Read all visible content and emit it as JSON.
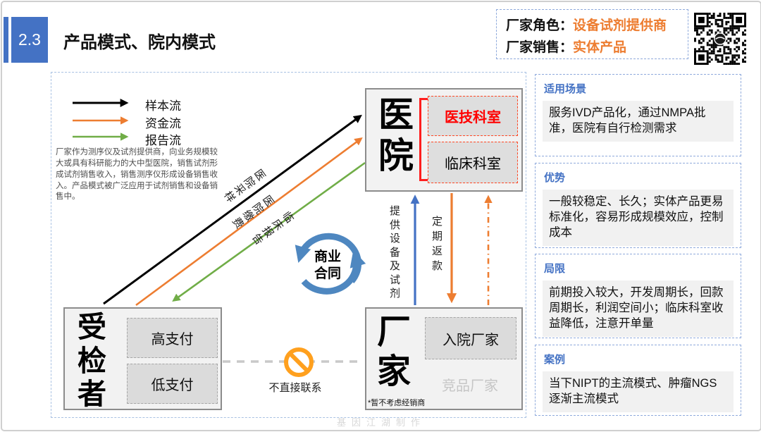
{
  "header": {
    "badge": "2.3",
    "title": "产品模式、院内模式",
    "role_label": "厂家角色：",
    "role_value": "设备试剂提供商",
    "sales_label": "厂家销售：",
    "sales_value": "实体产品"
  },
  "legend": {
    "items": [
      {
        "label": "样本流",
        "color": "#000000"
      },
      {
        "label": "资金流",
        "color": "#ED7D31"
      },
      {
        "label": "报告流",
        "color": "#70AD47"
      }
    ]
  },
  "description": "厂家作为测序仪及试剂提供商，向业务规模较大或具有科研能力的大中型医院，销售试剂形成试剂销售收入，销售测序仪形成设备销售收入。产品模式被广泛应用于试剂销售和设备销售中。",
  "diagram": {
    "hospital": {
      "name": "医院",
      "dept_tech": "医技科室",
      "dept_clinical": "临床科室"
    },
    "patient": {
      "name": "受检者",
      "high": "高支付",
      "low": "低支付"
    },
    "manufacturer": {
      "name": "厂家",
      "in_hospital": "入院厂家",
      "competitor": "竞品厂家",
      "footnote": "*暂不考虑经销商"
    },
    "labels": {
      "sampling": "医院采样",
      "fee": "医院缴费",
      "clinical_report": "临床报告",
      "provide": "提供设备及试剂",
      "refund": "定期返款",
      "contract": "商业合同",
      "no_contact": "不直接联系"
    }
  },
  "sidebar": {
    "sections": [
      {
        "heading": "适用场景",
        "text": "服务IVD产品化，通过NMPA批准，医院有自行检测需求"
      },
      {
        "heading": "优势",
        "text": "一般较稳定、长久；实体产品更易标准化，容易形成规模效应，控制成本"
      },
      {
        "heading": "局限",
        "text": "前期投入较大，开发周期长，回款周期长，利润空间小；临床科室收益降低，注意开单量"
      },
      {
        "heading": "案例",
        "text": "当下NIPT的主流模式、肿瘤NGS逐渐主流模式"
      }
    ]
  },
  "watermark": "基因江湖制作",
  "colors": {
    "accent_blue": "#4472C4",
    "accent_orange": "#ED7D31",
    "accent_green": "#70AD47",
    "cycle_blue": "#4E87C0",
    "alert_red": "#FF0000",
    "prohibit_orange": "#FFA01E"
  }
}
